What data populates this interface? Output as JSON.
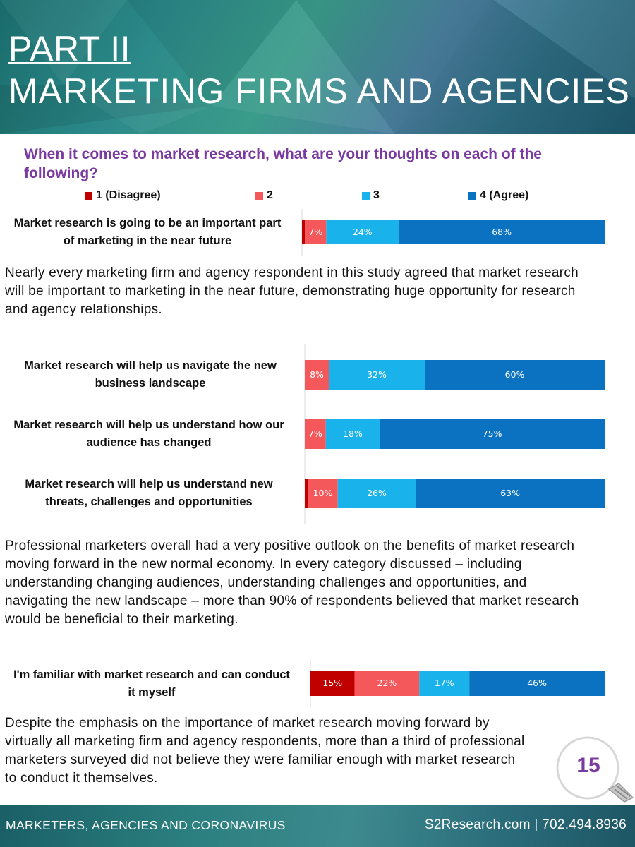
{
  "header": {
    "part_title": "PART II",
    "section_title": "MARKETING FIRMS AND AGENCIES"
  },
  "question": "When it comes to market research, what are your thoughts on each of the following?",
  "colors": {
    "c1": "#c00000",
    "c2": "#f4585a",
    "c3": "#19b2ea",
    "c4": "#0a72c0",
    "accent_purple": "#7a3aa0"
  },
  "chart_data": {
    "type": "bar",
    "orientation": "horizontal",
    "stacked": true,
    "xlim": [
      0,
      100
    ],
    "legend": {
      "position": "top",
      "entries": [
        "1 (Disagree)",
        "2",
        "3",
        "4 (Agree)"
      ]
    },
    "categories": [
      "Market research is going to be an important part of marketing in the near future",
      "Market research will help us navigate the new business landscape",
      "Market research will help us understand how our audience has changed",
      "Market research will help us understand new threats, challenges and opportunities",
      "I'm familiar with market research and can conduct it myself"
    ],
    "series": [
      {
        "name": "1 (Disagree)",
        "values": [
          1,
          0,
          0,
          1,
          15
        ],
        "labels": [
          "",
          "",
          "",
          "",
          "15%"
        ]
      },
      {
        "name": "2",
        "values": [
          7,
          8,
          7,
          10,
          22
        ],
        "labels": [
          "7%",
          "8%",
          "7%",
          "10%",
          "22%"
        ]
      },
      {
        "name": "3",
        "values": [
          24,
          32,
          18,
          26,
          17
        ],
        "labels": [
          "24%",
          "32%",
          "18%",
          "26%",
          "17%"
        ]
      },
      {
        "name": "4 (Agree)",
        "values": [
          68,
          60,
          75,
          63,
          46
        ],
        "labels": [
          "68%",
          "60%",
          "75%",
          "63%",
          "46%"
        ]
      }
    ]
  },
  "row_labels": [
    {
      "line1": "Market research is going to be an important part",
      "line2": "of marketing in the near future"
    },
    {
      "line1": "Market research will help us navigate the new",
      "line2": "business landscape"
    },
    {
      "line1": "Market research will help us understand how our",
      "line2": "audience has changed"
    },
    {
      "line1": "Market research will help us understand new",
      "line2": "threats, challenges and opportunities"
    },
    {
      "line1": "I'm familiar with market research and can conduct",
      "line2": "it myself"
    }
  ],
  "paragraphs": {
    "p1": "Nearly every marketing firm and agency respondent in this study agreed that market research will be important to marketing in the near future, demonstrating huge opportunity for research and agency relationships.",
    "p2": "Professional marketers overall had a very positive outlook on the benefits of market research moving forward in the new normal economy. In every category discussed – including understanding changing audiences, understanding challenges and opportunities, and navigating the new landscape – more than 90% of respondents believed that market research would be beneficial to their marketing.",
    "p3": "Despite the emphasis on the importance of market research moving forward by virtually all marketing firm and agency respondents, more than a third of professional marketers surveyed did not believe they were familiar enough with market research to conduct it themselves."
  },
  "page_number": "15",
  "footer": {
    "left": "MARKETERS, AGENCIES AND CORONAVIRUS",
    "right": "S2Research.com | 702.494.8936"
  }
}
